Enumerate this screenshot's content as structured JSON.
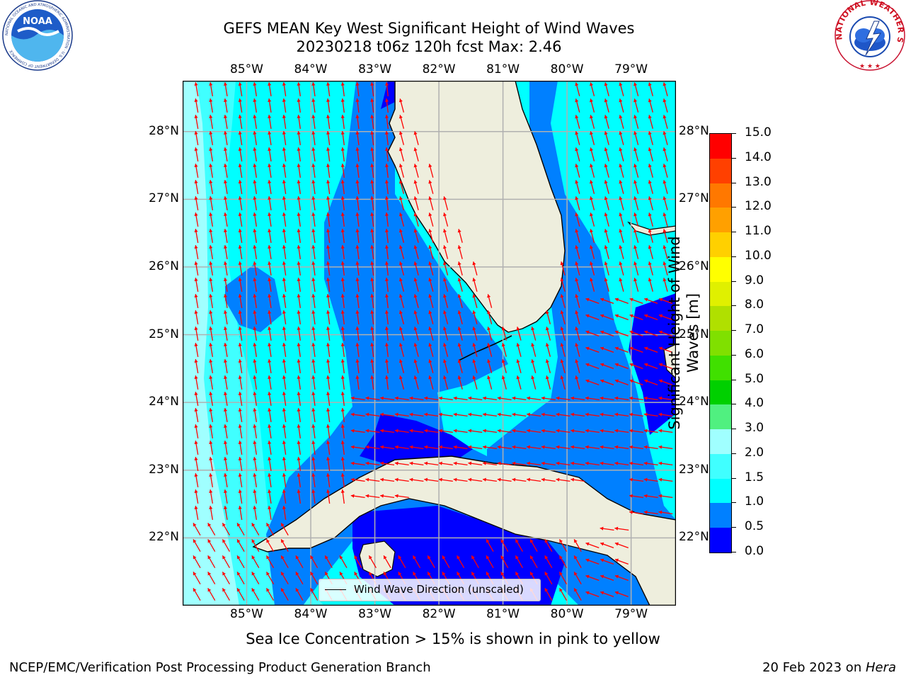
{
  "header": {
    "title_line1": "GEFS MEAN Key West Significant Height of Wind Waves",
    "title_line2": "20230218 t06z 120h fcst   Max: 2.46"
  },
  "logos": {
    "noaa_text": "NOAA",
    "noaa_ring": "NATIONAL OCEANIC AND ATMOSPHERIC ADMINISTRATION · U.S. DEPARTMENT OF COMMERCE",
    "nws_ring": "NATIONAL WEATHER SERVICE"
  },
  "map": {
    "lon_labels": [
      "85°W",
      "84°W",
      "83°W",
      "82°W",
      "81°W",
      "80°W",
      "79°W"
    ],
    "lat_labels": [
      "28°N",
      "27°N",
      "26°N",
      "25°N",
      "24°N",
      "23°N",
      "22°N"
    ],
    "lon_values": [
      -85,
      -84,
      -83,
      -82,
      -81,
      -80,
      -79
    ],
    "lat_values": [
      28,
      27,
      26,
      25,
      24,
      23,
      22
    ],
    "extent": {
      "lon_min": -86.0,
      "lon_max": -78.3,
      "lat_min": 21.0,
      "lat_max": 28.75
    },
    "legend_label": "Wind Wave Direction (unscaled)",
    "arrow_color": "#ff0000",
    "land_color": "#eeeedd",
    "grid_color": "#b0b0b0",
    "direction_field": "mostly north-northwest in the Gulf of Mexico, west-northwest in Florida Straits and near Cuba"
  },
  "colorbar": {
    "label": "Significant Height of Wind Waves [m]",
    "ticks": [
      "0.0",
      "0.5",
      "1.0",
      "1.5",
      "2.0",
      "3.0",
      "4.0",
      "5.0",
      "6.0",
      "7.0",
      "8.0",
      "9.0",
      "10.0",
      "11.0",
      "12.0",
      "13.0",
      "14.0",
      "15.0"
    ],
    "colors": [
      "#0000ff",
      "#0080ff",
      "#00ffff",
      "#40ffff",
      "#a0ffff",
      "#50f080",
      "#00d000",
      "#40e000",
      "#80e000",
      "#b0e000",
      "#e0f000",
      "#ffff00",
      "#ffd000",
      "#ffa000",
      "#ff7800",
      "#ff4000",
      "#ff0000"
    ]
  },
  "notes": {
    "sea_ice": "Sea Ice Concentration > 15% is shown in pink to yellow"
  },
  "footer": {
    "left": "NCEP/EMC/Verification Post Processing Product Generation Branch",
    "date": "20 Feb 2023 on ",
    "host": "Hera"
  }
}
